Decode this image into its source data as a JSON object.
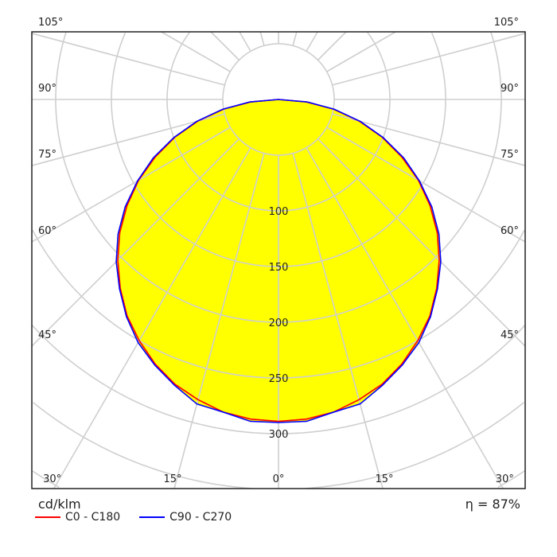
{
  "chart_data": {
    "type": "polar",
    "unit_label": "cd/klm",
    "efficiency_label": "η = 87%",
    "radial_ticks": [
      100,
      150,
      200,
      250,
      300
    ],
    "radial_grid_step": 50,
    "angle_ticks": [
      0,
      15,
      30,
      45,
      60,
      75,
      90,
      105
    ],
    "angle_tick_labels": [
      "0°",
      "15°",
      "30°",
      "45°",
      "60°",
      "75°",
      "90°",
      "105°"
    ],
    "angles": [
      0,
      5,
      10,
      15,
      20,
      25,
      30,
      35,
      40,
      45,
      50,
      55,
      60,
      65,
      70,
      75,
      80,
      85,
      90
    ],
    "series": [
      {
        "name": "C0 - C180",
        "color": "#ff0000",
        "values": [
          289,
          288,
          285,
          279,
          272,
          262,
          250,
          237,
          221,
          204,
          186,
          166,
          145,
          122,
          99,
          75,
          50,
          25,
          0
        ]
      },
      {
        "name": "C90 - C270",
        "color": "#0000ff",
        "values": [
          290,
          290,
          285,
          283,
          273,
          263,
          252,
          238,
          222,
          206,
          188,
          168,
          146,
          124,
          100,
          76,
          51,
          26,
          0
        ]
      }
    ],
    "fill_color": "#ffff00",
    "grid": true,
    "legend_placement": "bottom-left"
  }
}
